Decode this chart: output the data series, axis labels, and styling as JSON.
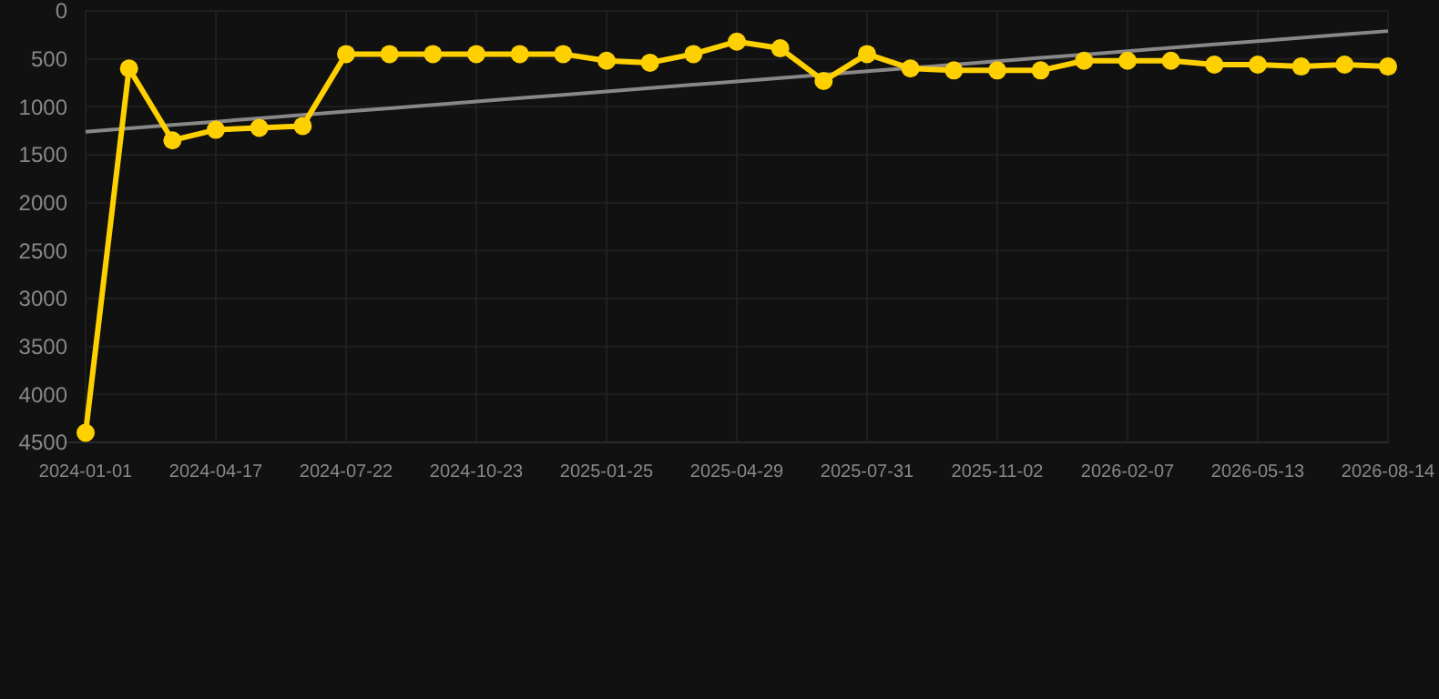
{
  "chart_data": {
    "type": "line",
    "categories": [
      "2024-01-01",
      null,
      null,
      "2024-04-17",
      null,
      null,
      "2024-07-22",
      null,
      null,
      "2024-10-23",
      null,
      null,
      "2025-01-25",
      null,
      null,
      "2025-04-29",
      null,
      null,
      "2025-07-31",
      null,
      null,
      "2025-11-02",
      null,
      null,
      "2026-02-07",
      null,
      null,
      "2026-05-13",
      null,
      null,
      "2026-08-14"
    ],
    "series": [
      {
        "color": "#ffd000",
        "marker": "circle",
        "values": [
          4400,
          600,
          1350,
          1240,
          1220,
          1200,
          450,
          450,
          450,
          450,
          450,
          450,
          520,
          540,
          450,
          320,
          390,
          730,
          450,
          600,
          620,
          620,
          620,
          520,
          520,
          520,
          560,
          560,
          580,
          560,
          580
        ]
      },
      {
        "type": "line",
        "color": "#888888",
        "marker": "none",
        "values": [
          1260,
          1225,
          1190,
          1155,
          1120,
          1085,
          1050,
          1015,
          980,
          945,
          910,
          875,
          840,
          805,
          770,
          735,
          700,
          665,
          630,
          595,
          560,
          525,
          490,
          455,
          420,
          385,
          350,
          315,
          280,
          245,
          210
        ]
      }
    ],
    "ylim": [
      4500,
      0
    ],
    "yticks": [
      0,
      500,
      1000,
      1500,
      2000,
      2500,
      3000,
      3500,
      4000,
      4500
    ],
    "grid": true
  }
}
